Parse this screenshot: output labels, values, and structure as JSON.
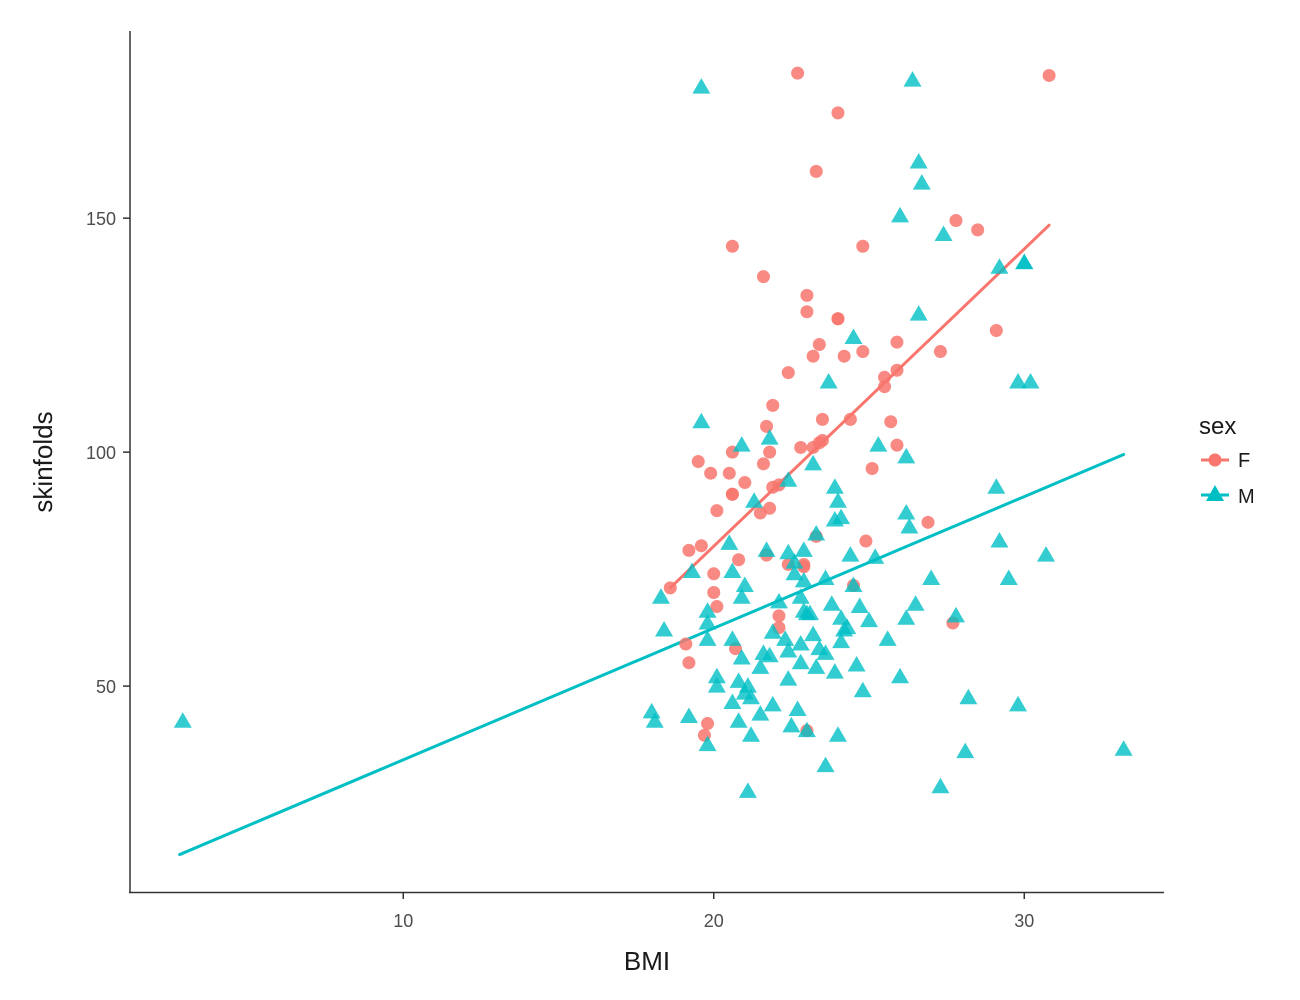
{
  "chart_data": {
    "type": "scatter",
    "xlabel": "BMI",
    "ylabel": "skinfolds",
    "xlim": [
      1.2,
      34.5
    ],
    "ylim": [
      6,
      190
    ],
    "xticks": [
      10,
      20,
      30
    ],
    "yticks": [
      50,
      100,
      150
    ],
    "grid": false,
    "legend": {
      "title": "sex",
      "position": "right",
      "entries": [
        "F",
        "M"
      ]
    },
    "series": [
      {
        "name": "F",
        "color": "#F8766D",
        "marker": "circle",
        "fit_line": [
          [
            18.6,
            71
          ],
          [
            30.8,
            148.5
          ]
        ],
        "points": [
          [
            22.7,
            181
          ],
          [
            30.8,
            180.5
          ],
          [
            24.0,
            172.5
          ],
          [
            23.3,
            160
          ],
          [
            27.8,
            149.5
          ],
          [
            28.5,
            147.5
          ],
          [
            20.6,
            144
          ],
          [
            24.8,
            144
          ],
          [
            21.6,
            137.5
          ],
          [
            23.0,
            133.5
          ],
          [
            23.0,
            130
          ],
          [
            24.0,
            128.5
          ],
          [
            24.0,
            128.5
          ],
          [
            25.9,
            123.5
          ],
          [
            29.1,
            126
          ],
          [
            23.4,
            123
          ],
          [
            23.2,
            120.5
          ],
          [
            24.2,
            120.5
          ],
          [
            24.8,
            121.5
          ],
          [
            27.3,
            121.5
          ],
          [
            25.9,
            117.5
          ],
          [
            25.5,
            116
          ],
          [
            22.4,
            117
          ],
          [
            25.5,
            114
          ],
          [
            21.9,
            110
          ],
          [
            23.5,
            107
          ],
          [
            24.4,
            107
          ],
          [
            25.7,
            106.5
          ],
          [
            21.7,
            105.5
          ],
          [
            23.5,
            102.5
          ],
          [
            23.4,
            102
          ],
          [
            25.9,
            101.5
          ],
          [
            22.8,
            101
          ],
          [
            23.2,
            101
          ],
          [
            20.6,
            100
          ],
          [
            21.8,
            100
          ],
          [
            21.6,
            97.5
          ],
          [
            25.1,
            96.5
          ],
          [
            19.5,
            98
          ],
          [
            19.9,
            95.5
          ],
          [
            20.5,
            95.5
          ],
          [
            21.0,
            93.5
          ],
          [
            22.1,
            93
          ],
          [
            21.9,
            92.5
          ],
          [
            20.6,
            91
          ],
          [
            20.6,
            91
          ],
          [
            20.1,
            87.5
          ],
          [
            21.5,
            87
          ],
          [
            21.8,
            88
          ],
          [
            26.9,
            85
          ],
          [
            23.3,
            82
          ],
          [
            24.9,
            81
          ],
          [
            19.2,
            79
          ],
          [
            19.6,
            80
          ],
          [
            21.7,
            78
          ],
          [
            20.8,
            77
          ],
          [
            22.4,
            76
          ],
          [
            22.9,
            76
          ],
          [
            22.9,
            75.5
          ],
          [
            20.0,
            74
          ],
          [
            24.5,
            71.5
          ],
          [
            18.6,
            71
          ],
          [
            20.0,
            70
          ],
          [
            20.1,
            67
          ],
          [
            22.1,
            65
          ],
          [
            27.7,
            63.5
          ],
          [
            22.1,
            62.5
          ],
          [
            19.1,
            59
          ],
          [
            20.7,
            58
          ],
          [
            19.2,
            55
          ],
          [
            23.0,
            40.5
          ],
          [
            19.8,
            42
          ],
          [
            19.7,
            39.5
          ]
        ]
      },
      {
        "name": "M",
        "color": "#00BFC4",
        "marker": "triangle",
        "fit_line": [
          [
            2.8,
            14
          ],
          [
            33.2,
            99.5
          ]
        ],
        "points": [
          [
            19.6,
            178
          ],
          [
            26.4,
            179.5
          ],
          [
            26.6,
            162
          ],
          [
            26.7,
            157.5
          ],
          [
            26.0,
            150.5
          ],
          [
            27.4,
            146.5
          ],
          [
            29.2,
            139.5
          ],
          [
            30.0,
            140.5
          ],
          [
            30.0,
            140.5
          ],
          [
            26.6,
            129.5
          ],
          [
            24.5,
            124.5
          ],
          [
            23.7,
            115
          ],
          [
            29.8,
            115
          ],
          [
            30.2,
            115
          ],
          [
            19.6,
            106.5
          ],
          [
            21.8,
            103
          ],
          [
            25.3,
            101.5
          ],
          [
            20.9,
            101.5
          ],
          [
            26.2,
            99
          ],
          [
            23.2,
            97.5
          ],
          [
            22.4,
            94
          ],
          [
            29.1,
            92.5
          ],
          [
            23.9,
            92.5
          ],
          [
            24.0,
            89.5
          ],
          [
            21.3,
            89.5
          ],
          [
            24.1,
            86
          ],
          [
            23.9,
            85.5
          ],
          [
            26.2,
            87
          ],
          [
            26.3,
            84
          ],
          [
            23.3,
            82.5
          ],
          [
            20.5,
            80.5
          ],
          [
            29.2,
            81
          ],
          [
            22.9,
            79
          ],
          [
            24.4,
            78
          ],
          [
            25.2,
            77.5
          ],
          [
            30.7,
            78
          ],
          [
            21.7,
            79
          ],
          [
            22.6,
            76.5
          ],
          [
            22.4,
            78.5
          ],
          [
            20.6,
            74.5
          ],
          [
            19.3,
            74.5
          ],
          [
            22.6,
            74
          ],
          [
            23.6,
            73
          ],
          [
            27.0,
            73
          ],
          [
            29.5,
            73
          ],
          [
            21.0,
            71.5
          ],
          [
            22.9,
            72.5
          ],
          [
            24.5,
            71.5
          ],
          [
            18.3,
            69
          ],
          [
            20.9,
            69
          ],
          [
            22.1,
            68
          ],
          [
            22.8,
            69
          ],
          [
            23.8,
            67.5
          ],
          [
            24.7,
            67
          ],
          [
            26.5,
            67.5
          ],
          [
            19.8,
            66
          ],
          [
            22.9,
            66
          ],
          [
            23.1,
            65.5
          ],
          [
            23.0,
            65.5
          ],
          [
            27.8,
            65
          ],
          [
            24.1,
            64.5
          ],
          [
            25.0,
            64
          ],
          [
            24.3,
            62.5
          ],
          [
            26.2,
            64.5
          ],
          [
            19.8,
            63.5
          ],
          [
            18.4,
            62
          ],
          [
            21.9,
            61.5
          ],
          [
            24.2,
            62
          ],
          [
            23.2,
            61
          ],
          [
            25.6,
            60
          ],
          [
            19.8,
            60
          ],
          [
            20.6,
            60
          ],
          [
            22.3,
            60
          ],
          [
            22.8,
            59
          ],
          [
            23.4,
            58
          ],
          [
            24.1,
            59.5
          ],
          [
            21.6,
            57
          ],
          [
            22.4,
            57.5
          ],
          [
            20.9,
            56
          ],
          [
            21.8,
            56.5
          ],
          [
            23.6,
            57
          ],
          [
            22.8,
            55
          ],
          [
            24.6,
            54.5
          ],
          [
            23.3,
            54
          ],
          [
            21.5,
            54
          ],
          [
            23.9,
            53
          ],
          [
            20.1,
            52
          ],
          [
            22.4,
            51.5
          ],
          [
            26.0,
            52
          ],
          [
            20.8,
            51
          ],
          [
            20.1,
            50
          ],
          [
            21.1,
            50
          ],
          [
            21.0,
            48.5
          ],
          [
            24.8,
            49
          ],
          [
            21.2,
            47.5
          ],
          [
            28.2,
            47.5
          ],
          [
            20.6,
            46.5
          ],
          [
            21.9,
            46
          ],
          [
            29.8,
            46
          ],
          [
            18.0,
            44.5
          ],
          [
            21.5,
            44
          ],
          [
            22.7,
            45
          ],
          [
            19.2,
            43.5
          ],
          [
            18.1,
            42.5
          ],
          [
            2.9,
            42.5
          ],
          [
            20.8,
            42.5
          ],
          [
            22.5,
            41.5
          ],
          [
            23.0,
            40.5
          ],
          [
            24.0,
            39.5
          ],
          [
            21.2,
            39.5
          ],
          [
            19.8,
            37.5
          ],
          [
            28.1,
            36
          ],
          [
            33.2,
            36.5
          ],
          [
            23.6,
            33
          ],
          [
            21.1,
            27.5
          ],
          [
            27.3,
            28.5
          ]
        ]
      }
    ]
  }
}
